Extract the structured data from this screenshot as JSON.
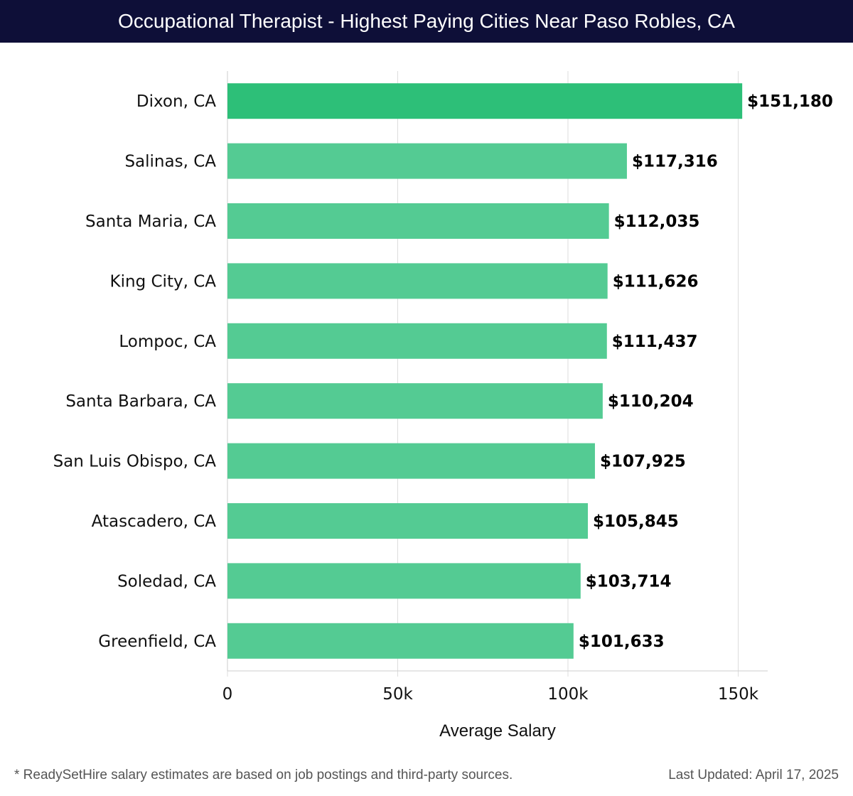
{
  "header": {
    "title": "Occupational Therapist - Highest Paying Cities Near Paso Robles, CA"
  },
  "chart_data": {
    "type": "bar",
    "orientation": "horizontal",
    "title": "Occupational Therapist - Highest Paying Cities Near Paso Robles, CA",
    "xlabel": "Average Salary",
    "ylabel": "",
    "xlim": [
      0,
      159000
    ],
    "xticks": [
      0,
      50000,
      100000,
      150000
    ],
    "xtick_labels": [
      "0",
      "50k",
      "100k",
      "150k"
    ],
    "grid": true,
    "categories": [
      "Dixon, CA",
      "Salinas, CA",
      "Santa Maria, CA",
      "King City, CA",
      "Lompoc, CA",
      "Santa Barbara, CA",
      "San Luis Obispo, CA",
      "Atascadero, CA",
      "Soledad, CA",
      "Greenfield, CA"
    ],
    "values": [
      151180,
      117316,
      112035,
      111626,
      111437,
      110204,
      107925,
      105845,
      103714,
      101633
    ],
    "value_labels": [
      "$151,180",
      "$117,316",
      "$112,035",
      "$111,626",
      "$111,437",
      "$110,204",
      "$107,925",
      "$105,845",
      "$103,714",
      "$101,633"
    ],
    "colors": {
      "top_bar": "#2dbf78",
      "bar": "#54cb93",
      "grid": "#dddddd",
      "axis": "#cccccc"
    }
  },
  "footer": {
    "note": "* ReadySetHire salary estimates are based on job postings and third-party sources.",
    "updated": "Last Updated: April 17, 2025"
  }
}
